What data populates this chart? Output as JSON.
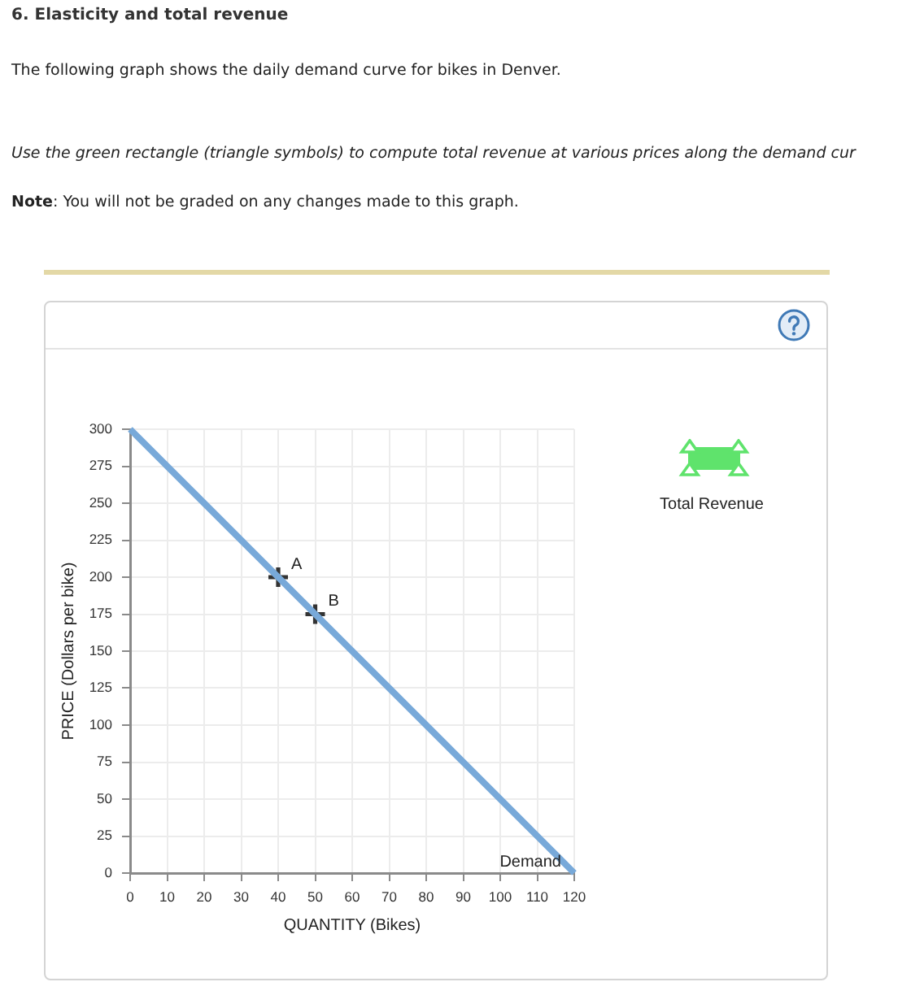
{
  "chart_data": {
    "type": "line",
    "title": "6. Elasticity and total revenue",
    "subtitle": "The following graph shows the daily demand curve for bikes in Denver.",
    "xlabel": "QUANTITY (Bikes)",
    "ylabel": "PRICE (Dollars per bike)",
    "xlim": [
      0,
      120
    ],
    "xticks": [
      0,
      10,
      20,
      30,
      40,
      50,
      60,
      70,
      80,
      90,
      100,
      110,
      120
    ],
    "ylim": [
      0,
      300
    ],
    "yticks": [
      0,
      25,
      50,
      75,
      100,
      125,
      150,
      175,
      200,
      225,
      250,
      275,
      300
    ],
    "grid": true,
    "series": [
      {
        "name": "Demand",
        "type": "line",
        "color": "#78a9d9",
        "x": [
          0,
          120
        ],
        "values": [
          300,
          0
        ],
        "marker": "none"
      },
      {
        "type": "scatter",
        "color": "#333333",
        "x": [
          40,
          50
        ],
        "values": [
          200,
          175
        ],
        "marker": "cross"
      }
    ],
    "annotations": [
      "Use the green rectangle (triangle symbols) to compute total revenue at various prices along the demand cur",
      "Note: You will not be graded on any changes made to this graph.",
      "Total Revenue",
      {
        "text": "A",
        "x": 40,
        "y": 200
      },
      {
        "text": "B",
        "x": 50,
        "y": 175
      }
    ]
  }
}
